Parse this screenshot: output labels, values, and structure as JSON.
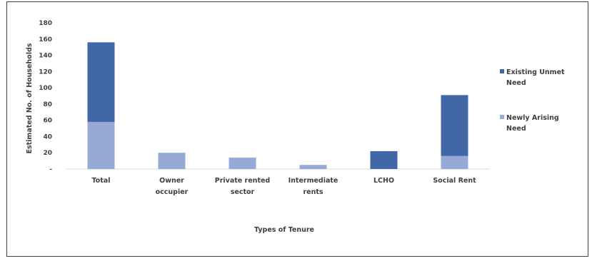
{
  "chart_data": {
    "type": "bar",
    "stacked": true,
    "categories": [
      [
        "Total"
      ],
      [
        "Owner",
        "occupier"
      ],
      [
        "Private rented",
        "sector"
      ],
      [
        "Intermediate",
        "rents"
      ],
      [
        "LCHO"
      ],
      [
        "Social Rent"
      ]
    ],
    "series": [
      {
        "name": "Newly Arising Need",
        "legend_lines": [
          "Newly Arising",
          "Need"
        ],
        "color": "#96aad6",
        "values": [
          58,
          20,
          14,
          5,
          0,
          16
        ]
      },
      {
        "name": "Existing Unmet Need",
        "legend_lines": [
          "Existing Unmet",
          "Need"
        ],
        "color": "#4267a6",
        "values": [
          98,
          0,
          0,
          0,
          22,
          75
        ]
      }
    ],
    "xlabel": "Types of Tenure",
    "ylabel": "Estimated No. of Households",
    "ylim": [
      0,
      180
    ],
    "yticks": [
      {
        "value": 0,
        "label": "-"
      },
      {
        "value": 20,
        "label": "20"
      },
      {
        "value": 40,
        "label": "40"
      },
      {
        "value": 60,
        "label": "60"
      },
      {
        "value": 80,
        "label": "80"
      },
      {
        "value": 100,
        "label": "100"
      },
      {
        "value": 120,
        "label": "120"
      },
      {
        "value": 140,
        "label": "140"
      },
      {
        "value": 160,
        "label": "160"
      },
      {
        "value": 180,
        "label": "180"
      }
    ],
    "grid": false,
    "legend_position": "right"
  }
}
